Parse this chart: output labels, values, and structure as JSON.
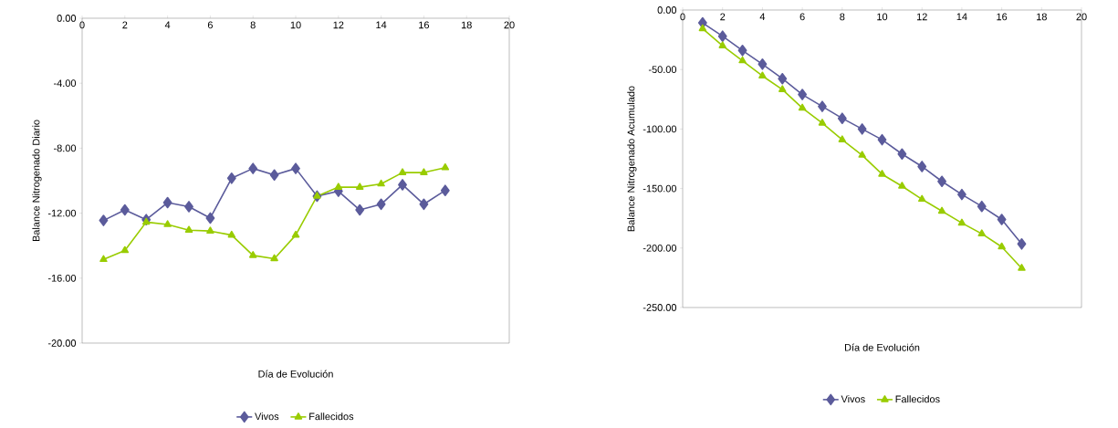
{
  "chart_data": [
    {
      "type": "line",
      "ylabel": "Balance Nitrogenado Diario",
      "xlabel": "Día de Evolución",
      "xlim": [
        0,
        20
      ],
      "xticks": [
        0,
        2,
        4,
        6,
        8,
        10,
        12,
        14,
        16,
        18,
        20
      ],
      "ylim": [
        -20,
        0
      ],
      "yticks": [
        {
          "value": 0,
          "label": "0.00"
        },
        {
          "value": -4,
          "label": "-4.00"
        },
        {
          "value": -8,
          "label": "-8.00"
        },
        {
          "value": -12,
          "label": "-12.00"
        },
        {
          "value": -16,
          "label": "-16.00"
        },
        {
          "value": -20,
          "label": "-20.00"
        }
      ],
      "x": [
        1,
        2,
        3,
        4,
        5,
        6,
        7,
        8,
        9,
        10,
        11,
        12,
        13,
        14,
        15,
        16,
        17
      ],
      "legend": "bottom",
      "grid": false,
      "series": [
        {
          "name": "Vivos",
          "color": "#5b5b9b",
          "marker": "diamond",
          "values": [
            -12.45,
            -11.8,
            -12.4,
            -11.35,
            -11.6,
            -12.3,
            -9.85,
            -9.25,
            -9.65,
            -9.25,
            -10.95,
            -10.65,
            -11.8,
            -11.45,
            -10.25,
            -11.45,
            -10.6
          ]
        },
        {
          "name": "Fallecidos",
          "color": "#99cc00",
          "marker": "triangle",
          "values": [
            -14.85,
            -14.3,
            -12.55,
            -12.7,
            -13.05,
            -13.1,
            -13.35,
            -14.6,
            -14.8,
            -13.35,
            -10.95,
            -10.4,
            -10.4,
            -10.2,
            -9.5,
            -9.5,
            -9.2
          ]
        }
      ]
    },
    {
      "type": "line",
      "ylabel": "Balance Nitrogenado Acumulado",
      "xlabel": "Día de Evolución",
      "xlim": [
        0,
        20
      ],
      "xticks": [
        0,
        2,
        4,
        6,
        8,
        10,
        12,
        14,
        16,
        18,
        20
      ],
      "ylim": [
        -250,
        0
      ],
      "yticks": [
        {
          "value": 0,
          "label": "0.00"
        },
        {
          "value": -50,
          "label": "-50.00"
        },
        {
          "value": -100,
          "label": "-100.00"
        },
        {
          "value": -150,
          "label": "-150.00"
        },
        {
          "value": -200,
          "label": "-200.00"
        },
        {
          "value": -250,
          "label": "-250.00"
        }
      ],
      "x": [
        1,
        2,
        3,
        4,
        5,
        6,
        7,
        8,
        9,
        10,
        11,
        12,
        13,
        14,
        15,
        16,
        17
      ],
      "legend": "bottom",
      "grid": false,
      "series": [
        {
          "name": "Vivos",
          "color": "#5b5b9b",
          "marker": "diamond",
          "values": [
            -10.8,
            -22,
            -34,
            -45.5,
            -57.7,
            -71,
            -81,
            -91,
            -100,
            -109,
            -121,
            -131.5,
            -144,
            -155,
            -165,
            -176,
            -196.6
          ]
        },
        {
          "name": "Fallecidos",
          "color": "#99cc00",
          "marker": "triangle",
          "values": [
            -15.6,
            -30,
            -42.6,
            -55.4,
            -66.8,
            -82.4,
            -95,
            -109,
            -122,
            -138,
            -148,
            -159,
            -169,
            -179,
            -188,
            -199,
            -217
          ]
        }
      ]
    }
  ]
}
